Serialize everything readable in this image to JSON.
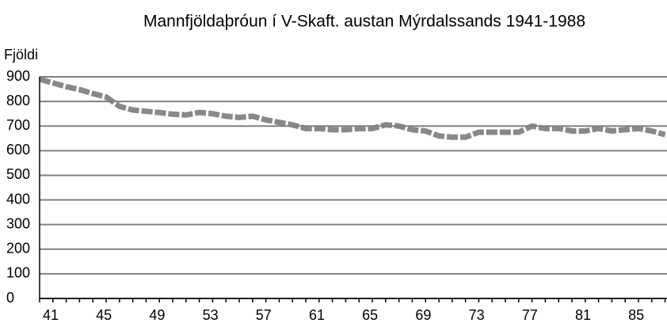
{
  "chart_data": {
    "type": "line",
    "title": "Mannfjöldaþróun í V-Skaft. austan Mýrdalssands 1941-1988",
    "y_label": "Fjöldi",
    "categories": [
      "41",
      null,
      null,
      null,
      "45",
      null,
      null,
      null,
      "49",
      null,
      null,
      null,
      "53",
      null,
      null,
      null,
      "57",
      null,
      null,
      null,
      "61",
      null,
      null,
      null,
      "65",
      null,
      null,
      null,
      "69",
      null,
      null,
      null,
      "73",
      null,
      null,
      null,
      "77",
      null,
      null,
      null,
      "81",
      null,
      null,
      null,
      "85",
      null,
      null,
      null
    ],
    "series": [
      {
        "name": "Fjöldi",
        "color": "#888888",
        "values": [
          890,
          875,
          860,
          848,
          832,
          818,
          780,
          765,
          760,
          755,
          748,
          745,
          755,
          750,
          740,
          735,
          740,
          725,
          715,
          705,
          690,
          690,
          685,
          685,
          690,
          690,
          705,
          700,
          685,
          680,
          660,
          655,
          655,
          675,
          675,
          675,
          675,
          700,
          690,
          690,
          680,
          680,
          690,
          680,
          685,
          690,
          680,
          665
        ]
      }
    ],
    "ylim": [
      0,
      900
    ],
    "yticks": [
      0,
      100,
      200,
      300,
      400,
      500,
      600,
      700,
      800,
      900
    ],
    "grid": true
  }
}
